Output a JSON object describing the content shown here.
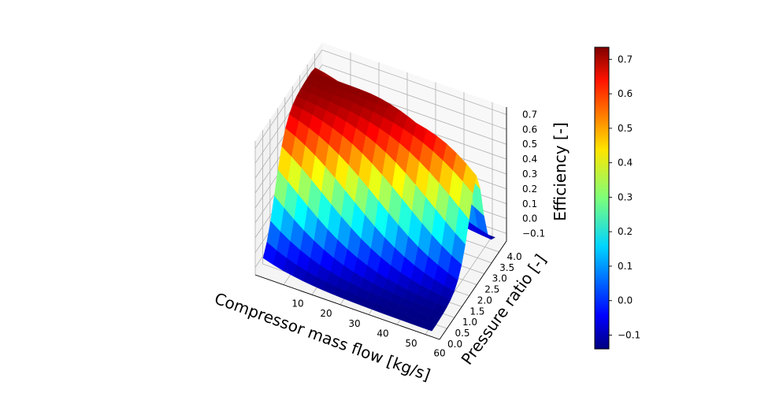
{
  "chart_data": {
    "type": "surface3d",
    "colormap": "jet",
    "xlabel": "Compressor mass flow [kg/s]",
    "ylabel": "Pressure ratio [-]",
    "zlabel": "Efficiency [-]",
    "xlim": [
      0,
      65
    ],
    "ylim": [
      0,
      4.5
    ],
    "zlim": [
      -0.15,
      0.75
    ],
    "x_ticks": [
      "10",
      "20",
      "30",
      "40",
      "50",
      "60"
    ],
    "y_ticks": [
      "0.0",
      "0.5",
      "1.0",
      "1.5",
      "2.0",
      "2.5",
      "3.0",
      "3.5",
      "4.0"
    ],
    "z_ticks": [
      "0.7",
      "0.6",
      "0.5",
      "0.4",
      "0.3",
      "0.2",
      "0.1",
      "0.0",
      "−0.1"
    ],
    "colorbar_ticks": [
      "0.7",
      "0.6",
      "0.5",
      "0.4",
      "0.3",
      "0.2",
      "0.1",
      "0.0",
      "−0.1"
    ],
    "colorbar_range": [
      -0.14,
      0.735
    ],
    "grid": true,
    "surface": {
      "x": [
        2,
        5.5,
        9,
        12.5,
        16,
        19.5,
        23,
        26.5,
        30,
        33.5,
        37,
        40.5,
        44,
        47.5,
        51,
        54.5,
        58,
        61.5
      ],
      "y": [
        0.15,
        0.4,
        0.65,
        0.9,
        1.15,
        1.4,
        1.65,
        1.9,
        2.15,
        2.4,
        2.65,
        2.9,
        3.15,
        3.4,
        3.65,
        3.9,
        4.15,
        4.4
      ],
      "z_formula": "Efficiency peaks near 0.73 along a ridge at high pressure ratio and falls to about -0.14 toward low pressure ratio / high mass flow"
    }
  }
}
